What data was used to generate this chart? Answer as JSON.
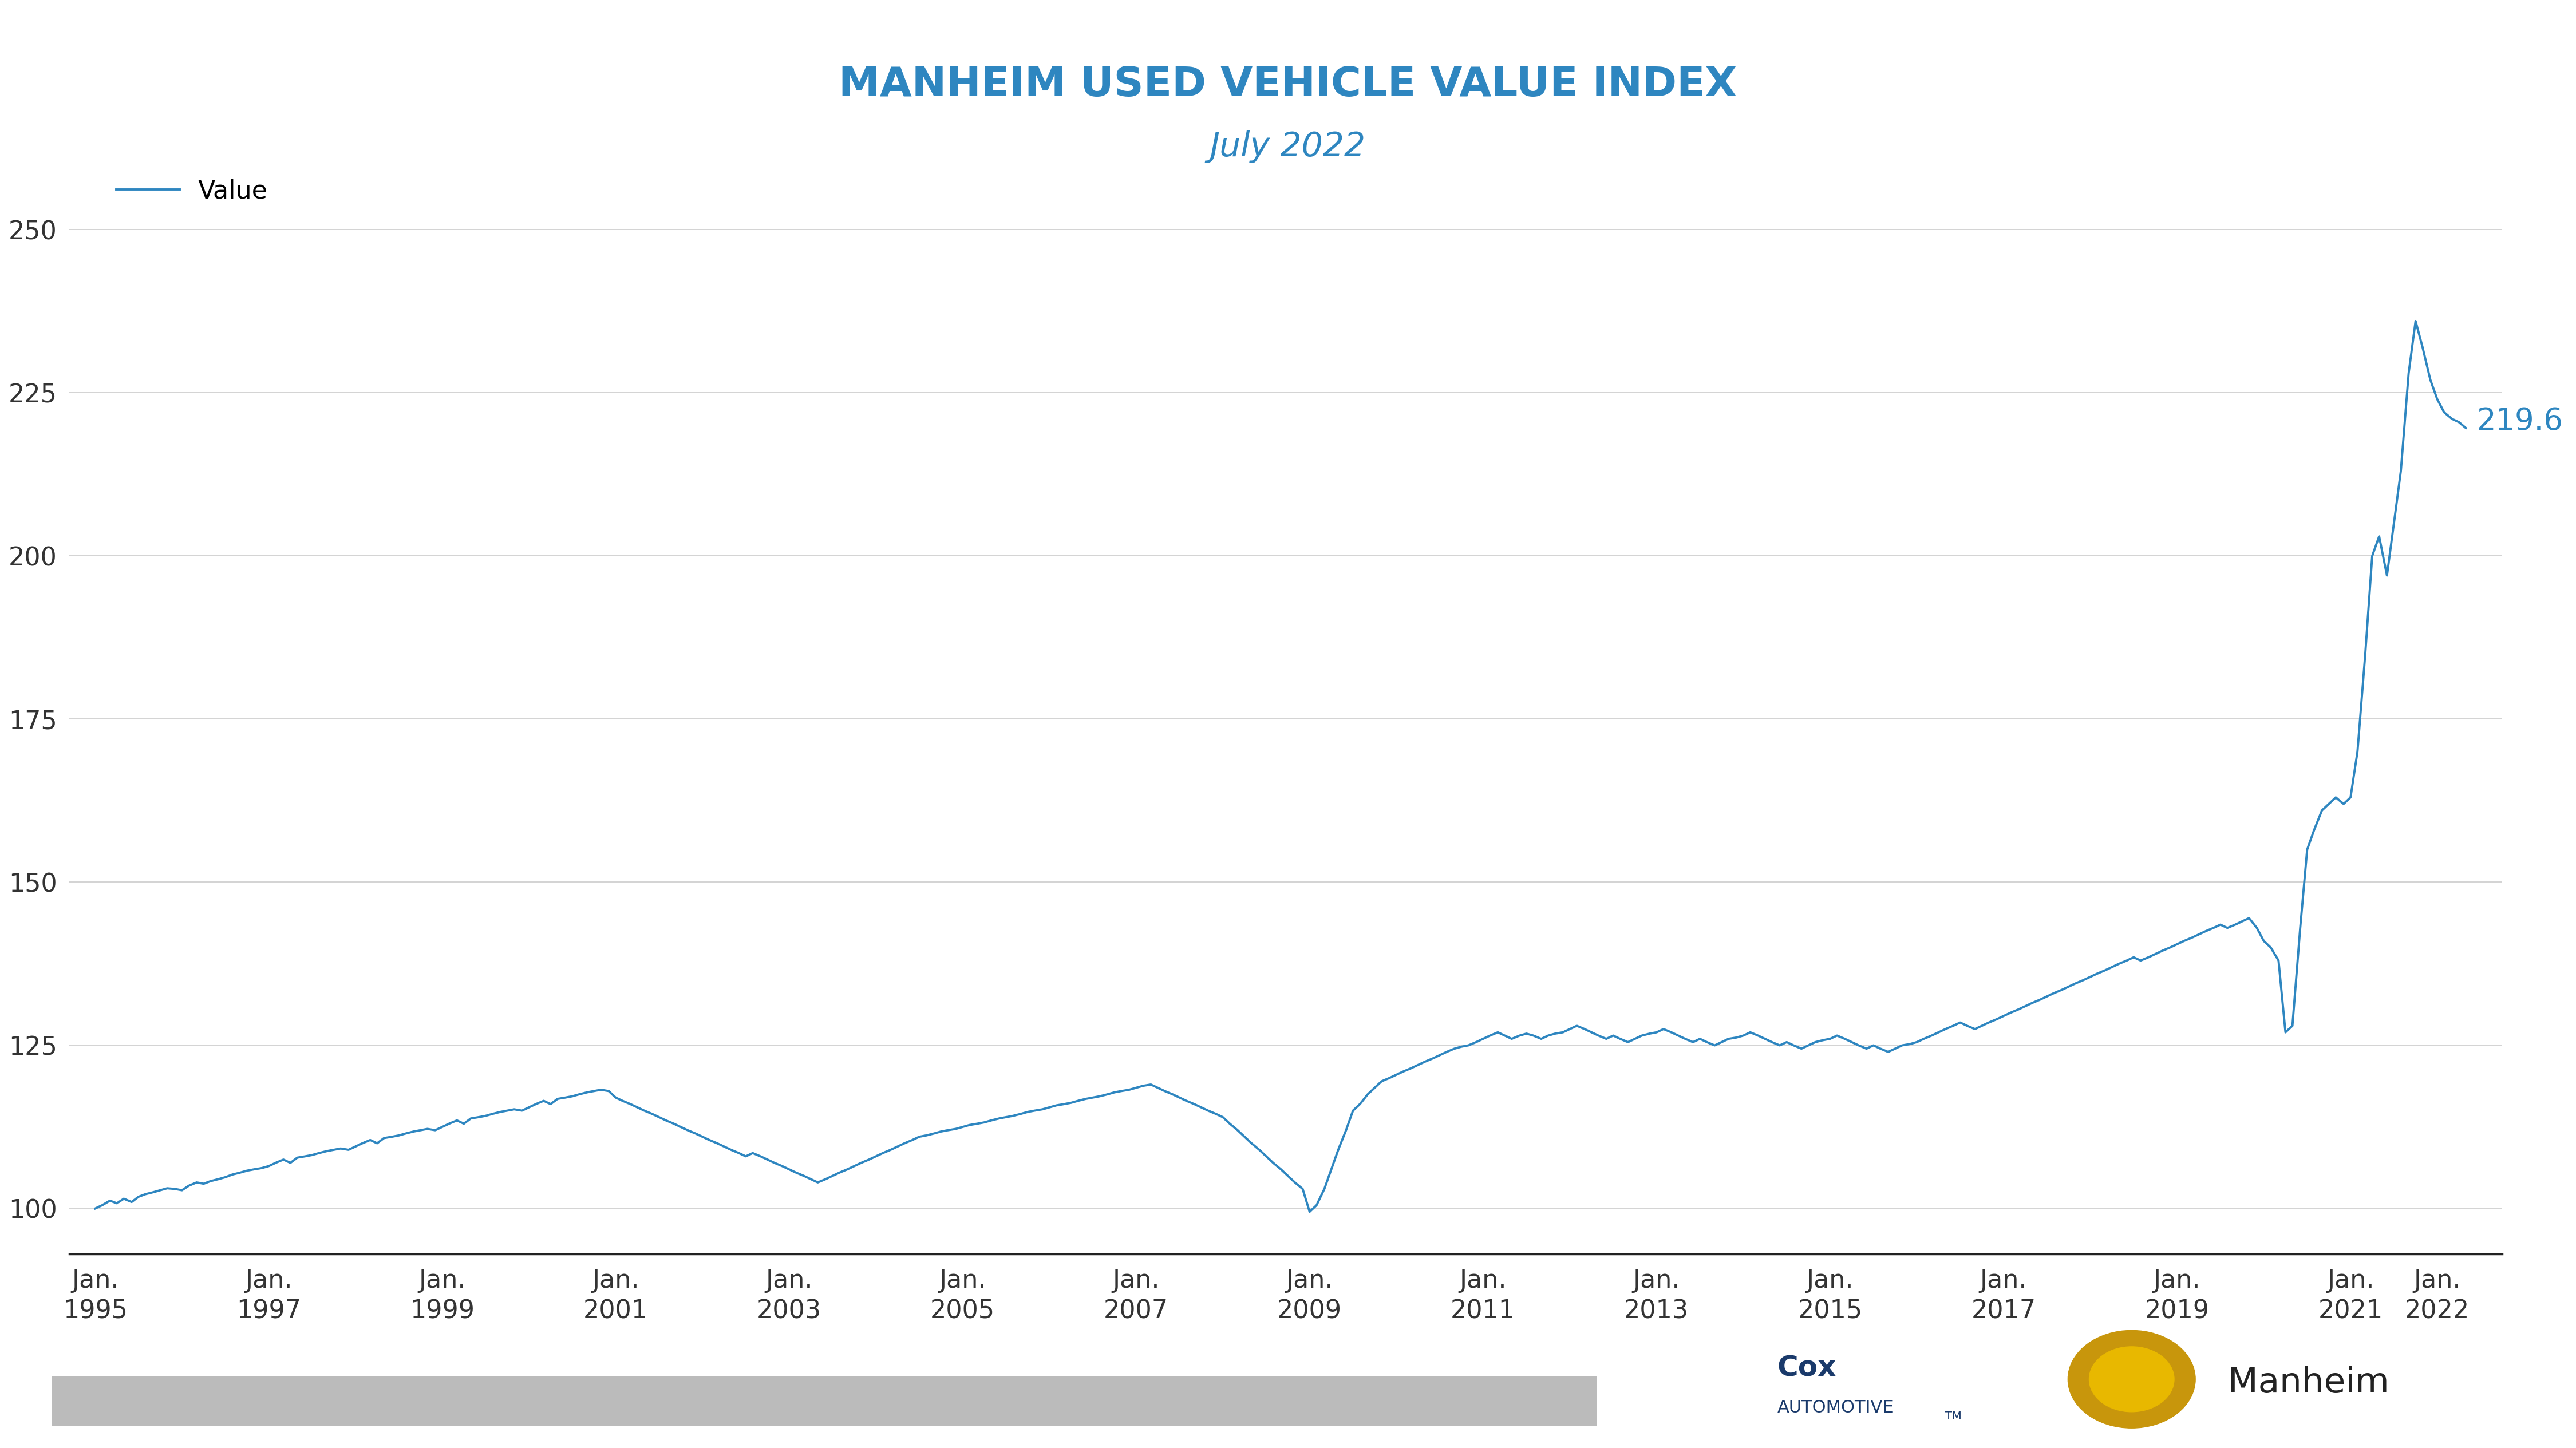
{
  "title_line1": "MANHEIM USED VEHICLE VALUE INDEX",
  "title_line2": "July 2022",
  "title_color1": "#2e86c0",
  "title_color2": "#2e86c0",
  "title_fontsize1": 52,
  "title_fontsize2": 42,
  "line_color": "#2e86c0",
  "line_width": 2.8,
  "legend_label": "Value",
  "last_value": 219.6,
  "annotation_color": "#2e86c0",
  "annotation_fontsize": 38,
  "yticks": [
    100,
    125,
    150,
    175,
    200,
    225,
    250
  ],
  "ylim": [
    93,
    258
  ],
  "xtick_labels": [
    "Jan.\n1995",
    "Jan.\n1997",
    "Jan.\n1999",
    "Jan.\n2001",
    "Jan.\n2003",
    "Jan.\n2005",
    "Jan.\n2007",
    "Jan.\n2009",
    "Jan.\n2011",
    "Jan.\n2013",
    "Jan.\n2015",
    "Jan.\n2017",
    "Jan.\n2019",
    "Jan.\n2021",
    "Jan.\n2022"
  ],
  "xtick_years": [
    1995,
    1997,
    1999,
    2001,
    2003,
    2005,
    2007,
    2009,
    2011,
    2013,
    2015,
    2017,
    2019,
    2021,
    2022
  ],
  "background_color": "#ffffff",
  "grid_color": "#cccccc",
  "axis_color": "#222222",
  "tick_fontsize": 32,
  "data": [
    [
      1995.0,
      100.0
    ],
    [
      1995.08,
      100.5
    ],
    [
      1995.17,
      101.2
    ],
    [
      1995.25,
      100.8
    ],
    [
      1995.33,
      101.5
    ],
    [
      1995.42,
      101.0
    ],
    [
      1995.5,
      101.8
    ],
    [
      1995.58,
      102.2
    ],
    [
      1995.67,
      102.5
    ],
    [
      1995.75,
      102.8
    ],
    [
      1995.83,
      103.1
    ],
    [
      1995.92,
      103.0
    ],
    [
      1996.0,
      102.8
    ],
    [
      1996.08,
      103.5
    ],
    [
      1996.17,
      104.0
    ],
    [
      1996.25,
      103.8
    ],
    [
      1996.33,
      104.2
    ],
    [
      1996.42,
      104.5
    ],
    [
      1996.5,
      104.8
    ],
    [
      1996.58,
      105.2
    ],
    [
      1996.67,
      105.5
    ],
    [
      1996.75,
      105.8
    ],
    [
      1996.83,
      106.0
    ],
    [
      1996.92,
      106.2
    ],
    [
      1997.0,
      106.5
    ],
    [
      1997.08,
      107.0
    ],
    [
      1997.17,
      107.5
    ],
    [
      1997.25,
      107.0
    ],
    [
      1997.33,
      107.8
    ],
    [
      1997.42,
      108.0
    ],
    [
      1997.5,
      108.2
    ],
    [
      1997.58,
      108.5
    ],
    [
      1997.67,
      108.8
    ],
    [
      1997.75,
      109.0
    ],
    [
      1997.83,
      109.2
    ],
    [
      1997.92,
      109.0
    ],
    [
      1998.0,
      109.5
    ],
    [
      1998.08,
      110.0
    ],
    [
      1998.17,
      110.5
    ],
    [
      1998.25,
      110.0
    ],
    [
      1998.33,
      110.8
    ],
    [
      1998.42,
      111.0
    ],
    [
      1998.5,
      111.2
    ],
    [
      1998.58,
      111.5
    ],
    [
      1998.67,
      111.8
    ],
    [
      1998.75,
      112.0
    ],
    [
      1998.83,
      112.2
    ],
    [
      1998.92,
      112.0
    ],
    [
      1999.0,
      112.5
    ],
    [
      1999.08,
      113.0
    ],
    [
      1999.17,
      113.5
    ],
    [
      1999.25,
      113.0
    ],
    [
      1999.33,
      113.8
    ],
    [
      1999.42,
      114.0
    ],
    [
      1999.5,
      114.2
    ],
    [
      1999.58,
      114.5
    ],
    [
      1999.67,
      114.8
    ],
    [
      1999.75,
      115.0
    ],
    [
      1999.83,
      115.2
    ],
    [
      1999.92,
      115.0
    ],
    [
      2000.0,
      115.5
    ],
    [
      2000.08,
      116.0
    ],
    [
      2000.17,
      116.5
    ],
    [
      2000.25,
      116.0
    ],
    [
      2000.33,
      116.8
    ],
    [
      2000.42,
      117.0
    ],
    [
      2000.5,
      117.2
    ],
    [
      2000.58,
      117.5
    ],
    [
      2000.67,
      117.8
    ],
    [
      2000.75,
      118.0
    ],
    [
      2000.83,
      118.2
    ],
    [
      2000.92,
      118.0
    ],
    [
      2001.0,
      117.0
    ],
    [
      2001.08,
      116.5
    ],
    [
      2001.17,
      116.0
    ],
    [
      2001.25,
      115.5
    ],
    [
      2001.33,
      115.0
    ],
    [
      2001.42,
      114.5
    ],
    [
      2001.5,
      114.0
    ],
    [
      2001.58,
      113.5
    ],
    [
      2001.67,
      113.0
    ],
    [
      2001.75,
      112.5
    ],
    [
      2001.83,
      112.0
    ],
    [
      2001.92,
      111.5
    ],
    [
      2002.0,
      111.0
    ],
    [
      2002.08,
      110.5
    ],
    [
      2002.17,
      110.0
    ],
    [
      2002.25,
      109.5
    ],
    [
      2002.33,
      109.0
    ],
    [
      2002.42,
      108.5
    ],
    [
      2002.5,
      108.0
    ],
    [
      2002.58,
      108.5
    ],
    [
      2002.67,
      108.0
    ],
    [
      2002.75,
      107.5
    ],
    [
      2002.83,
      107.0
    ],
    [
      2002.92,
      106.5
    ],
    [
      2003.0,
      106.0
    ],
    [
      2003.08,
      105.5
    ],
    [
      2003.17,
      105.0
    ],
    [
      2003.25,
      104.5
    ],
    [
      2003.33,
      104.0
    ],
    [
      2003.42,
      104.5
    ],
    [
      2003.5,
      105.0
    ],
    [
      2003.58,
      105.5
    ],
    [
      2003.67,
      106.0
    ],
    [
      2003.75,
      106.5
    ],
    [
      2003.83,
      107.0
    ],
    [
      2003.92,
      107.5
    ],
    [
      2004.0,
      108.0
    ],
    [
      2004.08,
      108.5
    ],
    [
      2004.17,
      109.0
    ],
    [
      2004.25,
      109.5
    ],
    [
      2004.33,
      110.0
    ],
    [
      2004.42,
      110.5
    ],
    [
      2004.5,
      111.0
    ],
    [
      2004.58,
      111.2
    ],
    [
      2004.67,
      111.5
    ],
    [
      2004.75,
      111.8
    ],
    [
      2004.83,
      112.0
    ],
    [
      2004.92,
      112.2
    ],
    [
      2005.0,
      112.5
    ],
    [
      2005.08,
      112.8
    ],
    [
      2005.17,
      113.0
    ],
    [
      2005.25,
      113.2
    ],
    [
      2005.33,
      113.5
    ],
    [
      2005.42,
      113.8
    ],
    [
      2005.5,
      114.0
    ],
    [
      2005.58,
      114.2
    ],
    [
      2005.67,
      114.5
    ],
    [
      2005.75,
      114.8
    ],
    [
      2005.83,
      115.0
    ],
    [
      2005.92,
      115.2
    ],
    [
      2006.0,
      115.5
    ],
    [
      2006.08,
      115.8
    ],
    [
      2006.17,
      116.0
    ],
    [
      2006.25,
      116.2
    ],
    [
      2006.33,
      116.5
    ],
    [
      2006.42,
      116.8
    ],
    [
      2006.5,
      117.0
    ],
    [
      2006.58,
      117.2
    ],
    [
      2006.67,
      117.5
    ],
    [
      2006.75,
      117.8
    ],
    [
      2006.83,
      118.0
    ],
    [
      2006.92,
      118.2
    ],
    [
      2007.0,
      118.5
    ],
    [
      2007.08,
      118.8
    ],
    [
      2007.17,
      119.0
    ],
    [
      2007.25,
      118.5
    ],
    [
      2007.33,
      118.0
    ],
    [
      2007.42,
      117.5
    ],
    [
      2007.5,
      117.0
    ],
    [
      2007.58,
      116.5
    ],
    [
      2007.67,
      116.0
    ],
    [
      2007.75,
      115.5
    ],
    [
      2007.83,
      115.0
    ],
    [
      2007.92,
      114.5
    ],
    [
      2008.0,
      114.0
    ],
    [
      2008.08,
      113.0
    ],
    [
      2008.17,
      112.0
    ],
    [
      2008.25,
      111.0
    ],
    [
      2008.33,
      110.0
    ],
    [
      2008.42,
      109.0
    ],
    [
      2008.5,
      108.0
    ],
    [
      2008.58,
      107.0
    ],
    [
      2008.67,
      106.0
    ],
    [
      2008.75,
      105.0
    ],
    [
      2008.83,
      104.0
    ],
    [
      2008.92,
      103.0
    ],
    [
      2009.0,
      99.5
    ],
    [
      2009.08,
      100.5
    ],
    [
      2009.17,
      103.0
    ],
    [
      2009.25,
      106.0
    ],
    [
      2009.33,
      109.0
    ],
    [
      2009.42,
      112.0
    ],
    [
      2009.5,
      115.0
    ],
    [
      2009.58,
      116.0
    ],
    [
      2009.67,
      117.5
    ],
    [
      2009.75,
      118.5
    ],
    [
      2009.83,
      119.5
    ],
    [
      2009.92,
      120.0
    ],
    [
      2010.0,
      120.5
    ],
    [
      2010.08,
      121.0
    ],
    [
      2010.17,
      121.5
    ],
    [
      2010.25,
      122.0
    ],
    [
      2010.33,
      122.5
    ],
    [
      2010.42,
      123.0
    ],
    [
      2010.5,
      123.5
    ],
    [
      2010.58,
      124.0
    ],
    [
      2010.67,
      124.5
    ],
    [
      2010.75,
      124.8
    ],
    [
      2010.83,
      125.0
    ],
    [
      2010.92,
      125.5
    ],
    [
      2011.0,
      126.0
    ],
    [
      2011.08,
      126.5
    ],
    [
      2011.17,
      127.0
    ],
    [
      2011.25,
      126.5
    ],
    [
      2011.33,
      126.0
    ],
    [
      2011.42,
      126.5
    ],
    [
      2011.5,
      126.8
    ],
    [
      2011.58,
      126.5
    ],
    [
      2011.67,
      126.0
    ],
    [
      2011.75,
      126.5
    ],
    [
      2011.83,
      126.8
    ],
    [
      2011.92,
      127.0
    ],
    [
      2012.0,
      127.5
    ],
    [
      2012.08,
      128.0
    ],
    [
      2012.17,
      127.5
    ],
    [
      2012.25,
      127.0
    ],
    [
      2012.33,
      126.5
    ],
    [
      2012.42,
      126.0
    ],
    [
      2012.5,
      126.5
    ],
    [
      2012.58,
      126.0
    ],
    [
      2012.67,
      125.5
    ],
    [
      2012.75,
      126.0
    ],
    [
      2012.83,
      126.5
    ],
    [
      2012.92,
      126.8
    ],
    [
      2013.0,
      127.0
    ],
    [
      2013.08,
      127.5
    ],
    [
      2013.17,
      127.0
    ],
    [
      2013.25,
      126.5
    ],
    [
      2013.33,
      126.0
    ],
    [
      2013.42,
      125.5
    ],
    [
      2013.5,
      126.0
    ],
    [
      2013.58,
      125.5
    ],
    [
      2013.67,
      125.0
    ],
    [
      2013.75,
      125.5
    ],
    [
      2013.83,
      126.0
    ],
    [
      2013.92,
      126.2
    ],
    [
      2014.0,
      126.5
    ],
    [
      2014.08,
      127.0
    ],
    [
      2014.17,
      126.5
    ],
    [
      2014.25,
      126.0
    ],
    [
      2014.33,
      125.5
    ],
    [
      2014.42,
      125.0
    ],
    [
      2014.5,
      125.5
    ],
    [
      2014.58,
      125.0
    ],
    [
      2014.67,
      124.5
    ],
    [
      2014.75,
      125.0
    ],
    [
      2014.83,
      125.5
    ],
    [
      2014.92,
      125.8
    ],
    [
      2015.0,
      126.0
    ],
    [
      2015.08,
      126.5
    ],
    [
      2015.17,
      126.0
    ],
    [
      2015.25,
      125.5
    ],
    [
      2015.33,
      125.0
    ],
    [
      2015.42,
      124.5
    ],
    [
      2015.5,
      125.0
    ],
    [
      2015.58,
      124.5
    ],
    [
      2015.67,
      124.0
    ],
    [
      2015.75,
      124.5
    ],
    [
      2015.83,
      125.0
    ],
    [
      2015.92,
      125.2
    ],
    [
      2016.0,
      125.5
    ],
    [
      2016.08,
      126.0
    ],
    [
      2016.17,
      126.5
    ],
    [
      2016.25,
      127.0
    ],
    [
      2016.33,
      127.5
    ],
    [
      2016.42,
      128.0
    ],
    [
      2016.5,
      128.5
    ],
    [
      2016.58,
      128.0
    ],
    [
      2016.67,
      127.5
    ],
    [
      2016.75,
      128.0
    ],
    [
      2016.83,
      128.5
    ],
    [
      2016.92,
      129.0
    ],
    [
      2017.0,
      129.5
    ],
    [
      2017.08,
      130.0
    ],
    [
      2017.17,
      130.5
    ],
    [
      2017.25,
      131.0
    ],
    [
      2017.33,
      131.5
    ],
    [
      2017.42,
      132.0
    ],
    [
      2017.5,
      132.5
    ],
    [
      2017.58,
      133.0
    ],
    [
      2017.67,
      133.5
    ],
    [
      2017.75,
      134.0
    ],
    [
      2017.83,
      134.5
    ],
    [
      2017.92,
      135.0
    ],
    [
      2018.0,
      135.5
    ],
    [
      2018.08,
      136.0
    ],
    [
      2018.17,
      136.5
    ],
    [
      2018.25,
      137.0
    ],
    [
      2018.33,
      137.5
    ],
    [
      2018.42,
      138.0
    ],
    [
      2018.5,
      138.5
    ],
    [
      2018.58,
      138.0
    ],
    [
      2018.67,
      138.5
    ],
    [
      2018.75,
      139.0
    ],
    [
      2018.83,
      139.5
    ],
    [
      2018.92,
      140.0
    ],
    [
      2019.0,
      140.5
    ],
    [
      2019.08,
      141.0
    ],
    [
      2019.17,
      141.5
    ],
    [
      2019.25,
      142.0
    ],
    [
      2019.33,
      142.5
    ],
    [
      2019.42,
      143.0
    ],
    [
      2019.5,
      143.5
    ],
    [
      2019.58,
      143.0
    ],
    [
      2019.67,
      143.5
    ],
    [
      2019.75,
      144.0
    ],
    [
      2019.83,
      144.5
    ],
    [
      2019.92,
      143.0
    ],
    [
      2020.0,
      141.0
    ],
    [
      2020.08,
      140.0
    ],
    [
      2020.17,
      138.0
    ],
    [
      2020.25,
      127.0
    ],
    [
      2020.33,
      128.0
    ],
    [
      2020.42,
      143.0
    ],
    [
      2020.5,
      155.0
    ],
    [
      2020.58,
      158.0
    ],
    [
      2020.67,
      161.0
    ],
    [
      2020.75,
      162.0
    ],
    [
      2020.83,
      163.0
    ],
    [
      2020.92,
      162.0
    ],
    [
      2021.0,
      163.0
    ],
    [
      2021.08,
      170.0
    ],
    [
      2021.17,
      185.0
    ],
    [
      2021.25,
      200.0
    ],
    [
      2021.33,
      203.0
    ],
    [
      2021.42,
      197.0
    ],
    [
      2021.5,
      205.0
    ],
    [
      2021.58,
      213.0
    ],
    [
      2021.67,
      228.0
    ],
    [
      2021.75,
      236.0
    ],
    [
      2021.83,
      232.0
    ],
    [
      2021.92,
      227.0
    ],
    [
      2022.0,
      224.0
    ],
    [
      2022.08,
      222.0
    ],
    [
      2022.17,
      221.0
    ],
    [
      2022.25,
      220.5
    ],
    [
      2022.33,
      219.6
    ]
  ]
}
